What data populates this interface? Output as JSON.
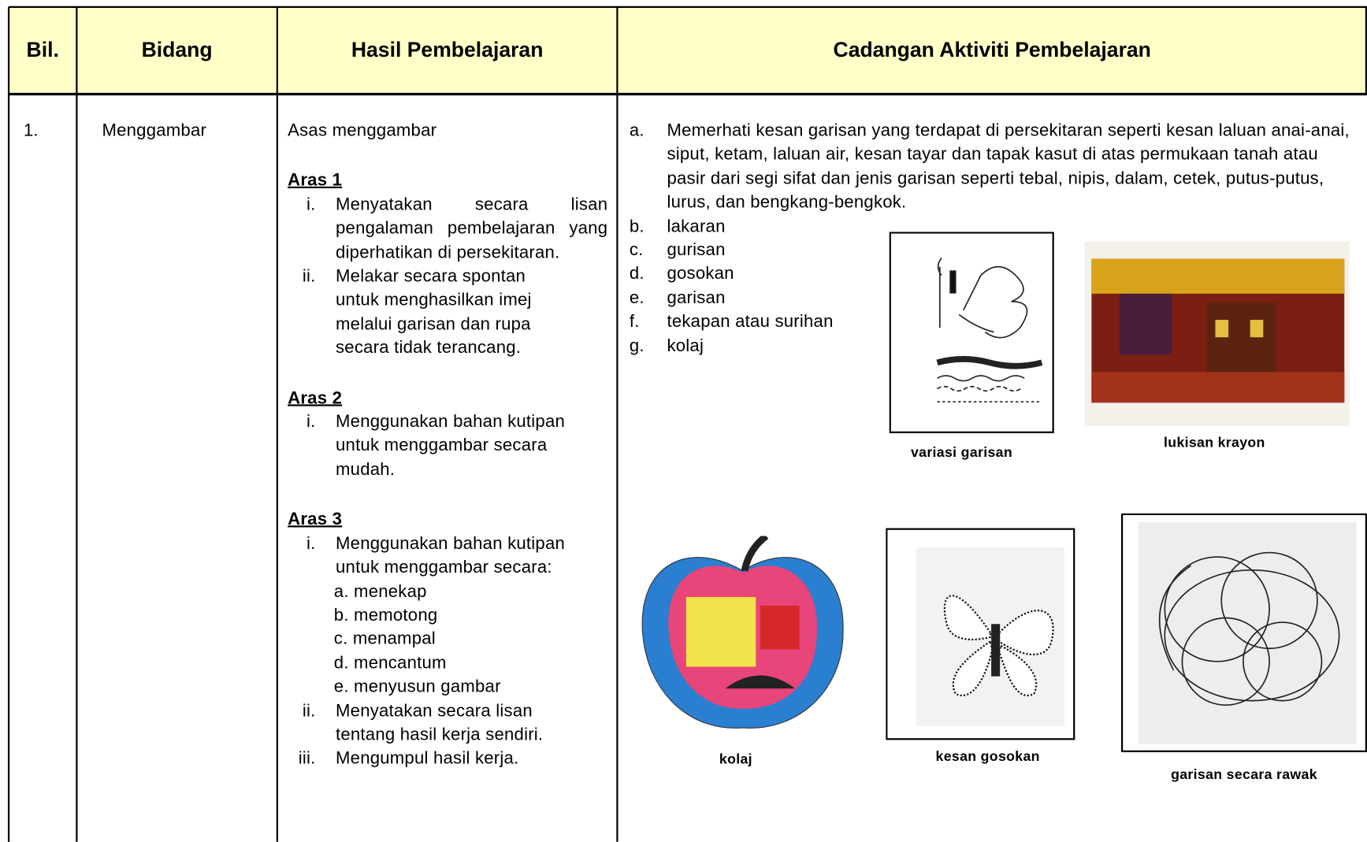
{
  "header": [
    "Bil.",
    "Bidang",
    "Hasil Pembelajaran",
    "Cadangan Aktiviti Pembelajaran"
  ],
  "rows": [
    {
      "number": "1.",
      "field": "Menggambar",
      "outcomes": {
        "intro": "Asas menggambar",
        "levels": [
          {
            "title": "Aras 1",
            "items": [
              {
                "marker": "i.",
                "text": "Menyatakan secara lisan pengalaman pembelajaran yang diperhatikan di persekitaran."
              },
              {
                "marker": "ii.",
                "text": "Melakar secara spontan untuk menghasilkan imej melalui garisan dan rupa secara tidak terancang."
              }
            ]
          },
          {
            "title": "Aras 2",
            "items": [
              {
                "marker": "i.",
                "text": "Menggunakan bahan kutipan untuk menggambar secara mudah."
              }
            ]
          },
          {
            "title": "Aras 3",
            "items": [
              {
                "marker": "i.",
                "text": "Menggunakan bahan kutipan untuk menggambar secara:",
                "subitems": [
                  "a. menekap",
                  "b. memotong",
                  "c. menampal",
                  "d. mencantum",
                  "e. menyusun gambar"
                ]
              },
              {
                "marker": "ii.",
                "text": "Menyatakan secara lisan tentang hasil kerja sendiri."
              },
              {
                "marker": "iii.",
                "text": "Mengumpul hasil kerja."
              }
            ]
          }
        ]
      },
      "activities": [
        {
          "marker": "a.",
          "text": "Memerhati kesan garisan yang terdapat di persekitaran seperti kesan laluan anai-anai, siput, ketam, laluan air, kesan tayar dan tapak kasut di atas permukaan tanah atau pasir dari segi sifat dan jenis garisan seperti tebal, nipis, dalam, cetek, putus-putus, lurus, dan bengkang-bengkok."
        },
        {
          "marker": "b.",
          "text": "lakaran"
        },
        {
          "marker": "c.",
          "text": "gurisan"
        },
        {
          "marker": "d.",
          "text": "gosokan"
        },
        {
          "marker": "e.",
          "text": "garisan"
        },
        {
          "marker": "f.",
          "text": "tekapan atau surihan"
        },
        {
          "marker": "g.",
          "text": "kolaj"
        }
      ],
      "figures": [
        "variasi garisan",
        "lukisan krayon",
        "kolaj",
        "kesan gosokan",
        "garisan secara rawak"
      ]
    }
  ]
}
